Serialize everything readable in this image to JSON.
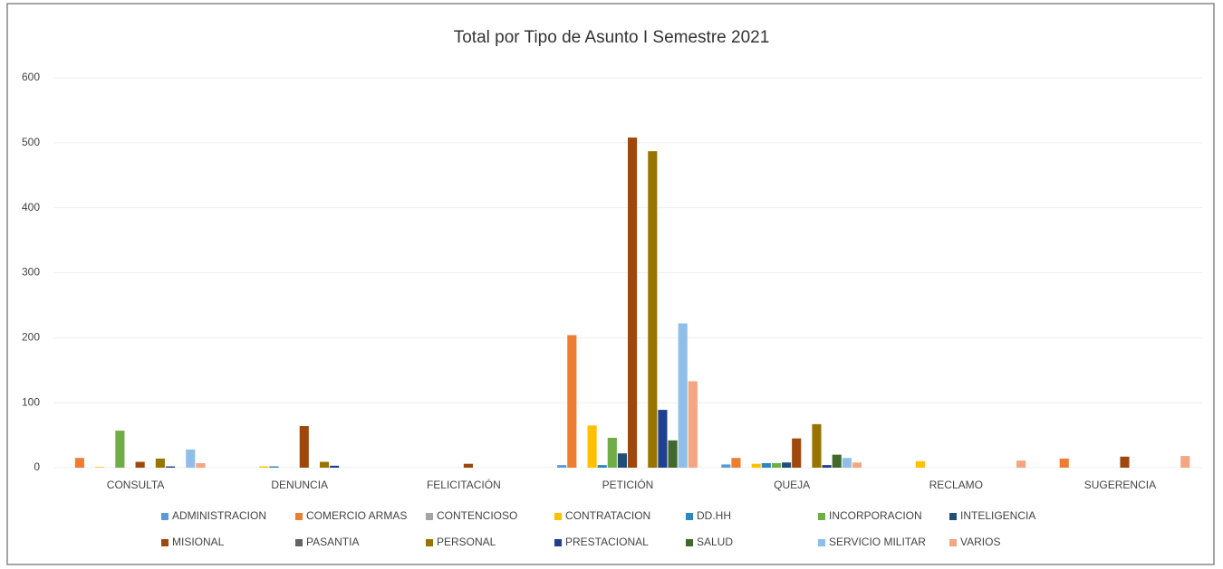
{
  "chart_data": {
    "type": "bar",
    "title": "Total por Tipo de Asunto I Semestre 2021",
    "categories": [
      "CONSULTA",
      "DENUNCIA",
      "FELICITACIÓN",
      "PETICIÓN",
      "QUEJA",
      "RECLAMO",
      "SUGERENCIA"
    ],
    "series": [
      {
        "name": "ADMINISTRACION",
        "color": "#5b9bd5",
        "values": [
          0,
          0,
          0,
          4,
          5,
          0,
          0
        ]
      },
      {
        "name": "COMERCIO ARMAS",
        "color": "#ed7d31",
        "values": [
          15,
          0,
          0,
          204,
          15,
          0,
          14
        ]
      },
      {
        "name": "CONTENCIOSO",
        "color": "#a5a5a5",
        "values": [
          0,
          0,
          0,
          0,
          0,
          0,
          0
        ]
      },
      {
        "name": "CONTRATACION",
        "color": "#ffc000",
        "values": [
          1,
          2,
          0,
          65,
          6,
          10,
          0
        ]
      },
      {
        "name": "DD.HH",
        "color": "#2e86c1",
        "values": [
          0,
          2,
          0,
          4,
          7,
          0,
          0
        ]
      },
      {
        "name": "INCORPORACION",
        "color": "#70ad47",
        "values": [
          57,
          0,
          0,
          46,
          7,
          0,
          0
        ]
      },
      {
        "name": "INTELIGENCIA",
        "color": "#1f4e79",
        "values": [
          0,
          0,
          0,
          22,
          8,
          0,
          0
        ]
      },
      {
        "name": "MISIONAL",
        "color": "#9e480e",
        "values": [
          9,
          64,
          6,
          508,
          45,
          0,
          17
        ]
      },
      {
        "name": "PASANTIA",
        "color": "#636363",
        "values": [
          0,
          0,
          0,
          0,
          0,
          0,
          0
        ]
      },
      {
        "name": "PERSONAL",
        "color": "#997300",
        "values": [
          14,
          9,
          0,
          487,
          67,
          0,
          0
        ]
      },
      {
        "name": "PRESTACIONAL",
        "color": "#1f3f8f",
        "values": [
          2,
          3,
          0,
          89,
          4,
          0,
          0
        ]
      },
      {
        "name": "SALUD",
        "color": "#43682b",
        "values": [
          0,
          0,
          0,
          42,
          20,
          0,
          0
        ]
      },
      {
        "name": "SERVICIO MILITAR",
        "color": "#8fbfe8",
        "values": [
          28,
          0,
          0,
          222,
          15,
          0,
          0
        ]
      },
      {
        "name": "VARIOS",
        "color": "#f4a582",
        "values": [
          7,
          0,
          0,
          133,
          8,
          11,
          18
        ]
      }
    ],
    "ylim": [
      0,
      600
    ],
    "yticks": [
      0,
      100,
      200,
      300,
      400,
      500,
      600
    ],
    "grid": true,
    "legend": "bottom"
  }
}
